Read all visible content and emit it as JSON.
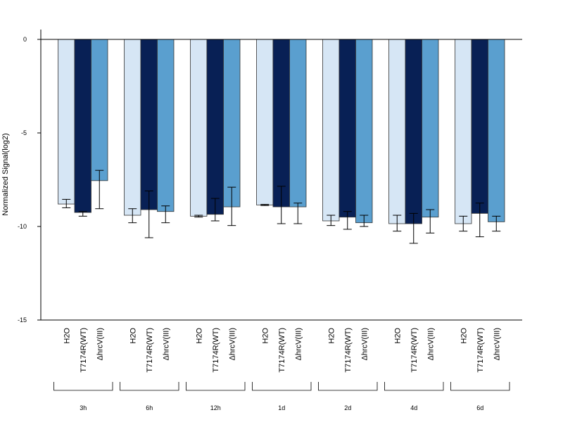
{
  "chart_data": {
    "type": "bar",
    "title": "",
    "ylabel": "Normalized Signal(log2)",
    "ylim": [
      -15,
      0
    ],
    "yticks": [
      0,
      -5,
      -10,
      -15
    ],
    "groups": [
      "3h",
      "6h",
      "12h",
      "1d",
      "2d",
      "4d",
      "6d"
    ],
    "series": [
      {
        "label": "H2O",
        "color": "#d6e6f5",
        "values": [
          -8.8,
          -9.4,
          -9.45,
          -8.85,
          -9.7,
          -9.85,
          -9.85
        ],
        "err_low": [
          -9.0,
          -9.8,
          -9.5,
          -8.88,
          -9.95,
          -10.25,
          -10.25
        ],
        "err_high": [
          -8.55,
          -9.05,
          -9.4,
          -8.82,
          -9.4,
          -9.4,
          -9.45
        ]
      },
      {
        "label": "T7174R(WT)",
        "color": "#082055",
        "values": [
          -9.25,
          -9.1,
          -9.35,
          -8.95,
          -9.5,
          -9.85,
          -9.3
        ],
        "err_low": [
          -9.45,
          -10.6,
          -9.7,
          -9.85,
          -10.15,
          -10.9,
          -10.55
        ],
        "err_high": [
          -9.2,
          -8.1,
          -8.5,
          -7.85,
          -9.2,
          -9.3,
          -8.75
        ]
      },
      {
        "label": "ΔhrcV(III)",
        "color": "#5a9fcf",
        "values": [
          -7.55,
          -9.2,
          -8.95,
          -8.95,
          -9.8,
          -9.5,
          -9.75
        ],
        "err_low": [
          -9.05,
          -9.8,
          -9.95,
          -9.85,
          -10.0,
          -10.35,
          -10.25
        ],
        "err_high": [
          -7.0,
          -8.9,
          -7.9,
          -8.75,
          -9.4,
          -9.1,
          -9.45
        ]
      }
    ],
    "grid": false,
    "legend": "none"
  }
}
